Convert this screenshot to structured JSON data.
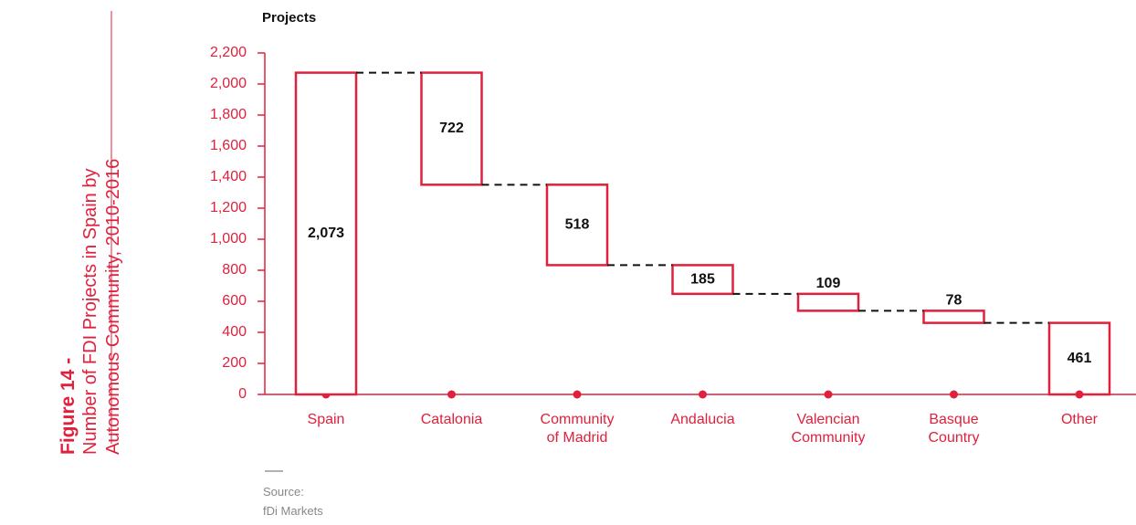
{
  "chart_data": {
    "type": "waterfall",
    "figure_label": "Figure 14 -",
    "title_lines": [
      "Number of FDI Projects in Spain by",
      "Autonomous Community, 2010-2016"
    ],
    "y_label": "Projects",
    "categories": [
      "Spain",
      "Catalonia",
      "Community of Madrid",
      "Andalucia",
      "Valencian Community",
      "Basque Country",
      "Other"
    ],
    "values": [
      2073,
      722,
      518,
      185,
      109,
      78,
      461
    ],
    "value_labels": [
      "2,073",
      "722",
      "518",
      "185",
      "109",
      "78",
      "461"
    ],
    "color": "#e0203c",
    "ylim": [
      0,
      2200
    ],
    "yticks": [
      0,
      200,
      400,
      600,
      800,
      {
        "value": 1000,
        "label": "1,000"
      },
      {
        "value": 1200,
        "label": "1,200"
      },
      {
        "value": 1400,
        "label": "1,400"
      },
      {
        "value": 1600,
        "label": "1,600"
      },
      {
        "value": 1800,
        "label": "1,800"
      },
      {
        "value": 2000,
        "label": "2,000"
      },
      {
        "value": 2200,
        "label": "2,200"
      }
    ],
    "source_label": "Source:",
    "source": "fDi Markets"
  }
}
